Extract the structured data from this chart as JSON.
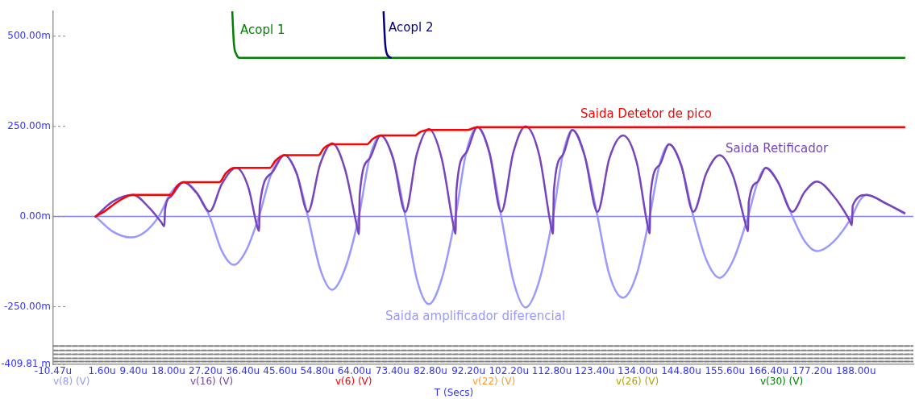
{
  "chart_data": {
    "type": "line",
    "xlabel": "T (Secs)",
    "xlim": [
      -10.47,
      202.2
    ],
    "xticks": [
      {
        "value": -10.47,
        "label": "-10.47u"
      },
      {
        "value": 1.6,
        "label": "1.60u"
      },
      {
        "value": 9.4,
        "label": "9.40u"
      },
      {
        "value": 18,
        "label": "18.00u"
      },
      {
        "value": 27.2,
        "label": "27.20u"
      },
      {
        "value": 36.4,
        "label": "36.40u"
      },
      {
        "value": 45.6,
        "label": "45.60u"
      },
      {
        "value": 54.8,
        "label": "54.80u"
      },
      {
        "value": 64,
        "label": "64.00u"
      },
      {
        "value": 73.4,
        "label": "73.40u"
      },
      {
        "value": 82.8,
        "label": "82.80u"
      },
      {
        "value": 92.2,
        "label": "92.20u"
      },
      {
        "value": 102.2,
        "label": "102.20u"
      },
      {
        "value": 112.8,
        "label": "112.80u"
      },
      {
        "value": 123.4,
        "label": "123.40u"
      },
      {
        "value": 134,
        "label": "134.00u"
      },
      {
        "value": 144.8,
        "label": "144.80u"
      },
      {
        "value": 155.6,
        "label": "155.60u"
      },
      {
        "value": 166.4,
        "label": "166.40u"
      },
      {
        "value": 177.2,
        "label": "177.20u"
      },
      {
        "value": 188,
        "label": "188.00u"
      }
    ],
    "ylim": [
      -409.81,
      569
    ],
    "yticks": [
      {
        "value": -409.81,
        "label": "-409.81 m"
      },
      {
        "value": -250,
        "label": "-250.00m"
      },
      {
        "value": 0,
        "label": "0.00m"
      },
      {
        "value": 250,
        "label": "250.00m"
      },
      {
        "value": 500,
        "label": "500.00m"
      }
    ],
    "grid": false,
    "legend": false,
    "marker": "none",
    "ref_lines": [
      {
        "axis": "y",
        "value": 0,
        "color": "#8080ff"
      }
    ],
    "series": [
      {
        "name": "Saida amplificador diferencial",
        "color": "#9999ff",
        "x": [
          0,
          4.3,
          8.7,
          12.3,
          15.6,
          18.6,
          21.8,
          25.0,
          28.2,
          31.2,
          34.2,
          37.2,
          40.4,
          43.5,
          46.7,
          49.7,
          52.5,
          55.5,
          58.5,
          61.7,
          65.1,
          67.7,
          70.5,
          73.6,
          76.6,
          79.4,
          82.4,
          85.6,
          89.0,
          91.6,
          94.4,
          97.4,
          100.3,
          103.3,
          106.3,
          109.7,
          113.1,
          115.5,
          117.9,
          120.9,
          124.1,
          127.0,
          130.4,
          133.8,
          137.0,
          139.4,
          141.8,
          144.8,
          147.8,
          151.0,
          154.3,
          157.7,
          161.3,
          163.7,
          165.7,
          168.7,
          172.3,
          175.3,
          178.3,
          182.6,
          187.0,
          188.8,
          190.6,
          195.6,
          200.0
        ],
        "values": [
          0,
          -42,
          -58,
          -42,
          0,
          65,
          95,
          67,
          0,
          -95,
          -134,
          -95,
          0,
          120,
          170,
          120,
          0,
          -144,
          -203,
          -144,
          0,
          160,
          225,
          160,
          0,
          -172,
          -243,
          -172,
          0,
          176,
          248,
          176,
          0,
          -178,
          -252,
          -178,
          0,
          170,
          240,
          170,
          0,
          -160,
          -225,
          -160,
          0,
          142,
          200,
          142,
          0,
          -120,
          -170,
          -120,
          0,
          96,
          135,
          96,
          0,
          -68,
          -96,
          -68,
          0,
          42,
          60,
          35,
          8
        ]
      },
      {
        "name": "Saida Retificador",
        "color": "#7744bb",
        "x": [
          0,
          4.3,
          9.3,
          13.2,
          16.2,
          17.0,
          17.2,
          18.6,
          21.8,
          25.0,
          28.2,
          31.2,
          34.8,
          37.8,
          39.8,
          40.4,
          40.6,
          43.5,
          46.7,
          49.7,
          52.5,
          55.5,
          58.5,
          61.7,
          64.5,
          65.1,
          65.3,
          67.7,
          70.5,
          73.6,
          76.6,
          79.4,
          82.4,
          85.6,
          88.4,
          89.0,
          89.2,
          91.6,
          94.4,
          97.4,
          100.3,
          103.3,
          106.3,
          109.7,
          112.5,
          113.1,
          113.3,
          115.5,
          117.9,
          120.9,
          124.1,
          127.0,
          130.4,
          133.8,
          136.4,
          137.0,
          137.2,
          139.4,
          141.8,
          144.8,
          147.8,
          151.0,
          154.3,
          157.7,
          160.7,
          161.3,
          161.5,
          163.7,
          165.7,
          168.7,
          172.3,
          175.3,
          178.3,
          182.6,
          186.4,
          187.0,
          187.2,
          190.6,
          195.6,
          200.0
        ],
        "values": [
          0,
          42,
          60,
          25,
          -15,
          -27,
          20,
          55,
          95,
          65,
          14,
          90,
          135,
          80,
          -20,
          -40,
          30,
          120,
          170,
          120,
          13,
          144,
          203,
          130,
          -20,
          -49,
          60,
          160,
          225,
          160,
          13,
          172,
          243,
          160,
          -20,
          -48,
          70,
          176,
          248,
          176,
          13,
          178,
          250,
          170,
          -20,
          -48,
          70,
          170,
          240,
          170,
          13,
          160,
          225,
          150,
          -20,
          -47,
          60,
          142,
          200,
          142,
          13,
          120,
          170,
          110,
          -20,
          -41,
          40,
          96,
          135,
          96,
          13,
          68,
          97,
          55,
          -10,
          -24,
          30,
          60,
          35,
          10
        ]
      },
      {
        "name": "Saida Detetor de pico",
        "color": "#ff0000",
        "x": [
          0,
          2.3,
          5.3,
          8.3,
          9.3,
          18.6,
          20.2,
          21.8,
          30.6,
          32.2,
          34.2,
          43.1,
          44.5,
          46.7,
          55.1,
          56.5,
          58.5,
          67.1,
          68.5,
          70.5,
          79.0,
          80.4,
          82.4,
          92.0,
          93.6,
          94.4,
          200.0
        ],
        "values": [
          0,
          15,
          40,
          58,
          60,
          60,
          85,
          95,
          95,
          120,
          135,
          135,
          155,
          170,
          170,
          190,
          200,
          200,
          215,
          225,
          225,
          235,
          240,
          240,
          246,
          248,
          248
        ]
      },
      {
        "name": "Acopl 1",
        "color": "#008000",
        "x": [
          33.8,
          34.2,
          34.8,
          35.6,
          200.0
        ],
        "values": [
          569,
          480,
          450,
          440,
          440
        ]
      },
      {
        "name": "Acopl 2",
        "color": "#000080",
        "x": [
          71.2,
          71.6,
          72.0,
          73.0
        ],
        "values": [
          569,
          480,
          452,
          440
        ]
      },
      {
        "color": "#808080",
        "line_style": "dashed",
        "x": [
          -10.47,
          202.2
        ],
        "values": [
          -359,
          -359
        ]
      },
      {
        "color": "#808080",
        "line_style": "dashed",
        "x": [
          -10.47,
          202.2
        ],
        "values": [
          -371,
          -371
        ]
      },
      {
        "color": "#808080",
        "line_style": "dashed",
        "x": [
          -10.47,
          202.2
        ],
        "values": [
          -382,
          -382
        ]
      },
      {
        "color": "#808080",
        "line_style": "dashed",
        "x": [
          -10.47,
          202.2
        ],
        "values": [
          -393,
          -393
        ]
      },
      {
        "color": "#808080",
        "line_style": "dashed",
        "x": [
          -10.47,
          202.2
        ],
        "values": [
          -402,
          -402
        ]
      }
    ],
    "annotations": [
      "v(8) (V)",
      "v(16) (V)",
      "v(6) (V)",
      "v(22) (V)",
      "v(26) (V)",
      "v(30) (V)"
    ]
  }
}
